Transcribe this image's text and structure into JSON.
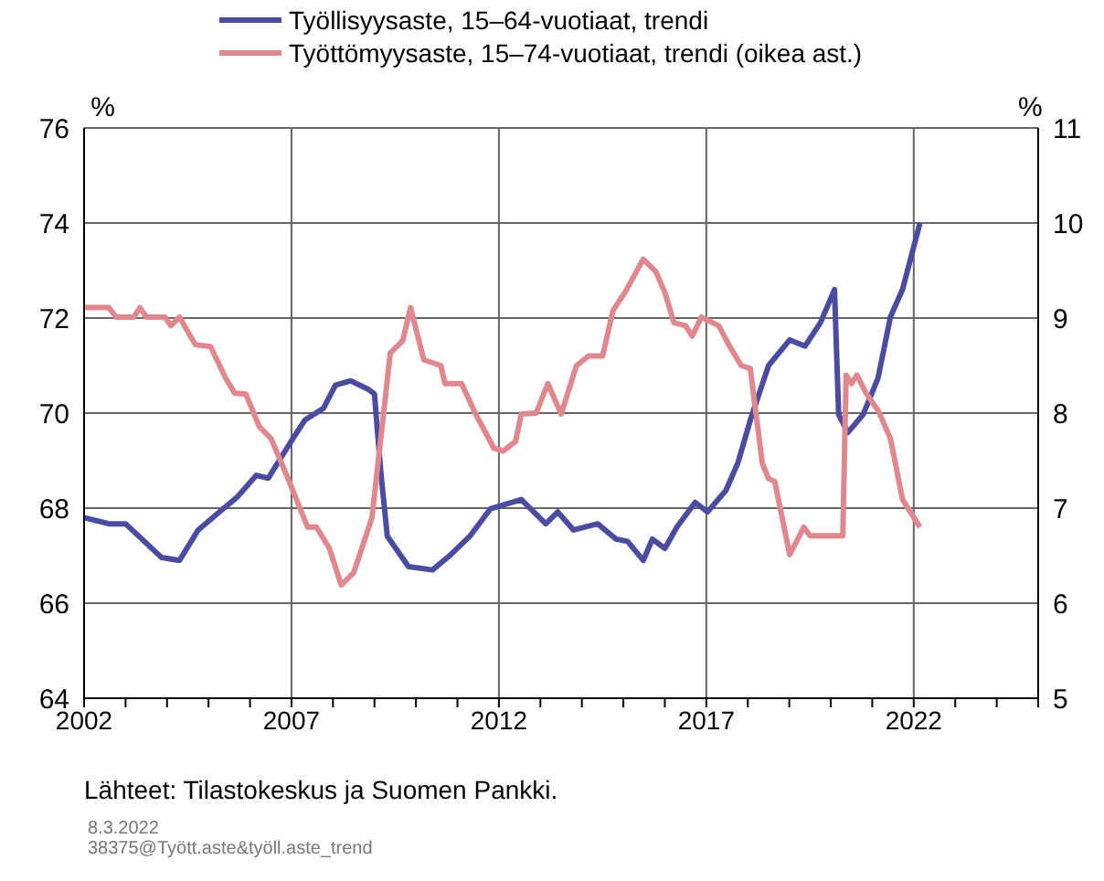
{
  "chart_data": {
    "type": "line",
    "ylabel": "%",
    "y2label": "%",
    "legend": "top",
    "grid": true,
    "xlim": [
      2002,
      2025
    ],
    "xticks": [
      {
        "value": 2002,
        "label": "2002"
      },
      {
        "value": 2003,
        "label": null
      },
      {
        "value": 2004,
        "label": null
      },
      {
        "value": 2005,
        "label": null
      },
      {
        "value": 2006,
        "label": null
      },
      {
        "value": 2007,
        "label": "2007"
      },
      {
        "value": 2008,
        "label": null
      },
      {
        "value": 2009,
        "label": null
      },
      {
        "value": 2010,
        "label": null
      },
      {
        "value": 2011,
        "label": null
      },
      {
        "value": 2012,
        "label": "2012"
      },
      {
        "value": 2013,
        "label": null
      },
      {
        "value": 2014,
        "label": null
      },
      {
        "value": 2015,
        "label": null
      },
      {
        "value": 2016,
        "label": null
      },
      {
        "value": 2017,
        "label": "2017"
      },
      {
        "value": 2018,
        "label": null
      },
      {
        "value": 2019,
        "label": null
      },
      {
        "value": 2020,
        "label": null
      },
      {
        "value": 2021,
        "label": null
      },
      {
        "value": 2022,
        "label": "2022"
      },
      {
        "value": 2023,
        "label": null
      },
      {
        "value": 2024,
        "label": null
      },
      {
        "value": 2025,
        "label": null
      }
    ],
    "ylim": [
      64,
      76
    ],
    "yticks": [
      64,
      66,
      68,
      70,
      72,
      74,
      76
    ],
    "y2lim": [
      5,
      11
    ],
    "y2ticks": [
      5,
      6,
      7,
      8,
      9,
      10,
      11
    ],
    "series": [
      {
        "name": "Työllisyysaste, 15–64-vuotiaat, trendi",
        "color": "#4b4ba0",
        "x": [
          2002.0,
          2002.6,
          2003.0,
          2003.87,
          2004.3,
          2004.75,
          2005.26,
          2005.7,
          2006.15,
          2006.44,
          2007.03,
          2007.32,
          2007.77,
          2008.06,
          2008.43,
          2008.87,
          2009.0,
          2009.16,
          2009.31,
          2009.82,
          2010.4,
          2010.85,
          2011.3,
          2011.8,
          2012.54,
          2013.13,
          2013.42,
          2013.8,
          2014.38,
          2014.82,
          2015.1,
          2015.48,
          2015.7,
          2016.0,
          2016.29,
          2016.73,
          2017.03,
          2017.47,
          2017.76,
          2018.06,
          2018.5,
          2019.01,
          2019.38,
          2019.75,
          2020.09,
          2020.19,
          2020.41,
          2020.78,
          2021.14,
          2021.44,
          2021.73,
          2022.15
        ],
        "values": [
          67.8,
          67.67,
          67.67,
          66.96,
          66.9,
          67.54,
          67.92,
          68.24,
          68.69,
          68.63,
          69.46,
          69.85,
          70.1,
          70.59,
          70.68,
          70.49,
          70.4,
          68.69,
          67.41,
          66.77,
          66.7,
          67.03,
          67.41,
          67.99,
          68.18,
          67.67,
          67.92,
          67.54,
          67.67,
          67.35,
          67.3,
          66.9,
          67.35,
          67.15,
          67.6,
          68.12,
          67.92,
          68.37,
          68.95,
          69.85,
          71.0,
          71.54,
          71.41,
          71.9,
          72.6,
          69.97,
          69.59,
          69.97,
          70.74,
          72.03,
          72.6,
          74.0
        ]
      },
      {
        "name": "Työttömyysaste, 15–74-vuotiaat, trendi (oikea ast.)",
        "color": "#e0888f",
        "axis": "y2",
        "x": [
          2002.0,
          2002.6,
          2002.77,
          2003.2,
          2003.35,
          2003.5,
          2003.95,
          2004.09,
          2004.3,
          2004.68,
          2005.05,
          2005.41,
          2005.63,
          2005.9,
          2006.22,
          2006.51,
          2006.88,
          2007.39,
          2007.6,
          2007.91,
          2008.2,
          2008.5,
          2008.94,
          2009.38,
          2009.68,
          2009.87,
          2010.19,
          2010.6,
          2010.7,
          2011.1,
          2011.44,
          2011.88,
          2012.1,
          2012.4,
          2012.54,
          2012.9,
          2013.18,
          2013.5,
          2013.87,
          2014.16,
          2014.5,
          2014.75,
          2015.04,
          2015.48,
          2015.78,
          2016.0,
          2016.22,
          2016.5,
          2016.66,
          2016.88,
          2017.3,
          2017.54,
          2017.84,
          2018.06,
          2018.35,
          2018.5,
          2018.65,
          2019.01,
          2019.35,
          2019.5,
          2020.29,
          2020.37,
          2020.5,
          2020.63,
          2020.85,
          2021.15,
          2021.44,
          2021.73,
          2022.15
        ],
        "values": [
          9.11,
          9.11,
          9.01,
          9.01,
          9.11,
          9.01,
          9.01,
          8.92,
          9.01,
          8.72,
          8.7,
          8.37,
          8.21,
          8.2,
          7.86,
          7.73,
          7.35,
          6.8,
          6.8,
          6.58,
          6.19,
          6.32,
          6.9,
          8.63,
          8.76,
          9.11,
          8.56,
          8.5,
          8.31,
          8.31,
          7.99,
          7.63,
          7.6,
          7.7,
          7.99,
          8.0,
          8.31,
          7.99,
          8.5,
          8.6,
          8.6,
          9.08,
          9.27,
          9.62,
          9.49,
          9.27,
          8.95,
          8.92,
          8.81,
          9.01,
          8.92,
          8.72,
          8.5,
          8.47,
          7.47,
          7.31,
          7.28,
          6.51,
          6.8,
          6.71,
          6.71,
          8.4,
          8.31,
          8.4,
          8.21,
          8.02,
          7.73,
          7.09,
          6.8
        ]
      }
    ],
    "annotations": [
      "Lähteet:  Tilastokeskus ja Suomen Pankki.",
      "8.3.2022",
      "38375@Tyött.aste&työll.aste_trend"
    ]
  }
}
